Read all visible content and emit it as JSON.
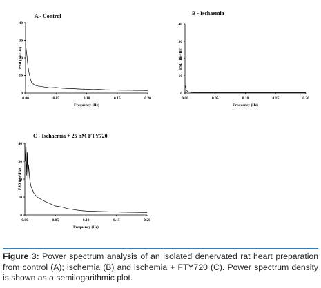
{
  "chart_data": [
    {
      "type": "line",
      "panel_title": "A - Control",
      "xlabel": "Frequency (Hz)",
      "ylabel": "PSD (ms²/Hz)",
      "xlim": [
        0,
        0.2
      ],
      "ylim": [
        0,
        40
      ],
      "xticks": [
        "0.00",
        "0.05",
        "0.10",
        "0.15",
        "0.20"
      ],
      "yticks": [
        "0",
        "10",
        "20",
        "30",
        "40"
      ],
      "series": [
        {
          "x": [
            0.0,
            0.002,
            0.004,
            0.006,
            0.008,
            0.01,
            0.015,
            0.02,
            0.03,
            0.04,
            0.05,
            0.06,
            0.07,
            0.08,
            0.09,
            0.1,
            0.11,
            0.12,
            0.13,
            0.14,
            0.15,
            0.16,
            0.17,
            0.18,
            0.19,
            0.2
          ],
          "y": [
            28,
            22,
            15,
            11,
            8,
            6,
            4.5,
            4,
            3.5,
            3,
            3.2,
            2.8,
            2.6,
            2.5,
            2.3,
            2.2,
            2.0,
            2.1,
            1.9,
            1.8,
            1.7,
            1.6,
            1.6,
            1.5,
            1.5,
            1.4
          ]
        }
      ]
    },
    {
      "type": "line",
      "panel_title": "B - Ischaemia",
      "xlabel": "Frequency (Hz)",
      "ylabel": "PSD (ms²/Hz)",
      "xlim": [
        0,
        0.2
      ],
      "ylim": [
        0,
        40
      ],
      "xticks": [
        "0.00",
        "0.05",
        "0.10",
        "0.15",
        "0.20"
      ],
      "yticks": [
        "0",
        "10",
        "20",
        "30",
        "40"
      ],
      "series": [
        {
          "x": [
            0.0,
            0.001,
            0.002,
            0.004,
            0.006,
            0.01,
            0.02,
            0.05,
            0.1,
            0.15,
            0.2
          ],
          "y": [
            4.5,
            3.5,
            2.0,
            1.0,
            0.6,
            0.4,
            0.3,
            0.3,
            0.3,
            0.3,
            0.3
          ]
        }
      ]
    },
    {
      "type": "line",
      "panel_title": "C - Ischaemia + 25 nM FTY720",
      "xlabel": "Frequency (Hz)",
      "ylabel": "PSD (ms²/Hz)",
      "xlim": [
        0,
        0.2
      ],
      "ylim": [
        0,
        40
      ],
      "xticks": [
        "0.00",
        "0.05",
        "0.10",
        "0.15",
        "0.20"
      ],
      "yticks": [
        "0",
        "10",
        "20",
        "30",
        "40"
      ],
      "series": [
        {
          "x": [
            0.0,
            0.001,
            0.002,
            0.003,
            0.004,
            0.005,
            0.006,
            0.008,
            0.01,
            0.015,
            0.02,
            0.03,
            0.04,
            0.05,
            0.06,
            0.07,
            0.08,
            0.09,
            0.1,
            0.12,
            0.14,
            0.16,
            0.18,
            0.2
          ],
          "y": [
            40,
            30,
            38,
            22,
            35,
            18,
            28,
            20,
            16,
            12,
            10,
            8,
            6.5,
            5,
            4.5,
            3.5,
            3,
            2.5,
            2.2,
            2.0,
            1.8,
            1.6,
            1.5,
            1.4
          ]
        }
      ]
    }
  ],
  "caption": {
    "label": "Figure 3:",
    "text": "Power spectrum analysis of an isolated denervated rat heart preparation from control (A); ischemia (B) and ischemia + FTY720 (C). Power spectrum density is shown as a semilogarithmic plot."
  }
}
